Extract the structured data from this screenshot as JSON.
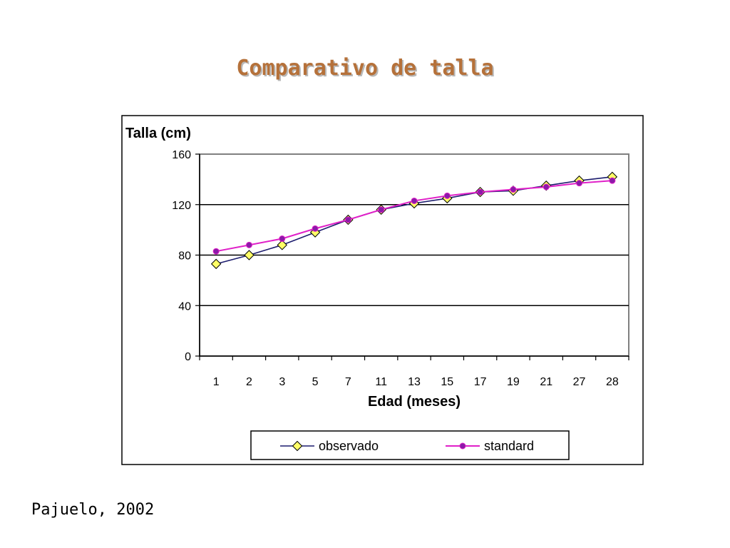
{
  "slide": {
    "title": "Comparativo de talla",
    "citation": "Pajuelo, 2002"
  },
  "colors": {
    "title": "#b5713a",
    "observado_line": "#1c1c6e",
    "observado_marker": "#ffff66",
    "standard_line": "#e020c8",
    "standard_marker": "#8b1aa8",
    "plot_background": "#ffffff",
    "gridline": "#000000"
  },
  "chart_data": {
    "type": "line",
    "title": "",
    "ylabel": "Talla (cm)",
    "xlabel": "Edad (meses)",
    "categories": [
      "1",
      "2",
      "3",
      "5",
      "7",
      "11",
      "13",
      "15",
      "17",
      "19",
      "21",
      "27",
      "28"
    ],
    "ylim": [
      0,
      160
    ],
    "yticks": [
      0,
      40,
      80,
      120,
      160
    ],
    "grid": true,
    "legend_position": "bottom",
    "series": [
      {
        "name": "observado",
        "marker": "diamond",
        "values": [
          73,
          80,
          88,
          98,
          108,
          116,
          121,
          125,
          130,
          131,
          135,
          139,
          142
        ]
      },
      {
        "name": "standard",
        "marker": "circle",
        "values": [
          83,
          88,
          93,
          101,
          108,
          116,
          123,
          127,
          130,
          132,
          134,
          137,
          139
        ]
      }
    ]
  }
}
